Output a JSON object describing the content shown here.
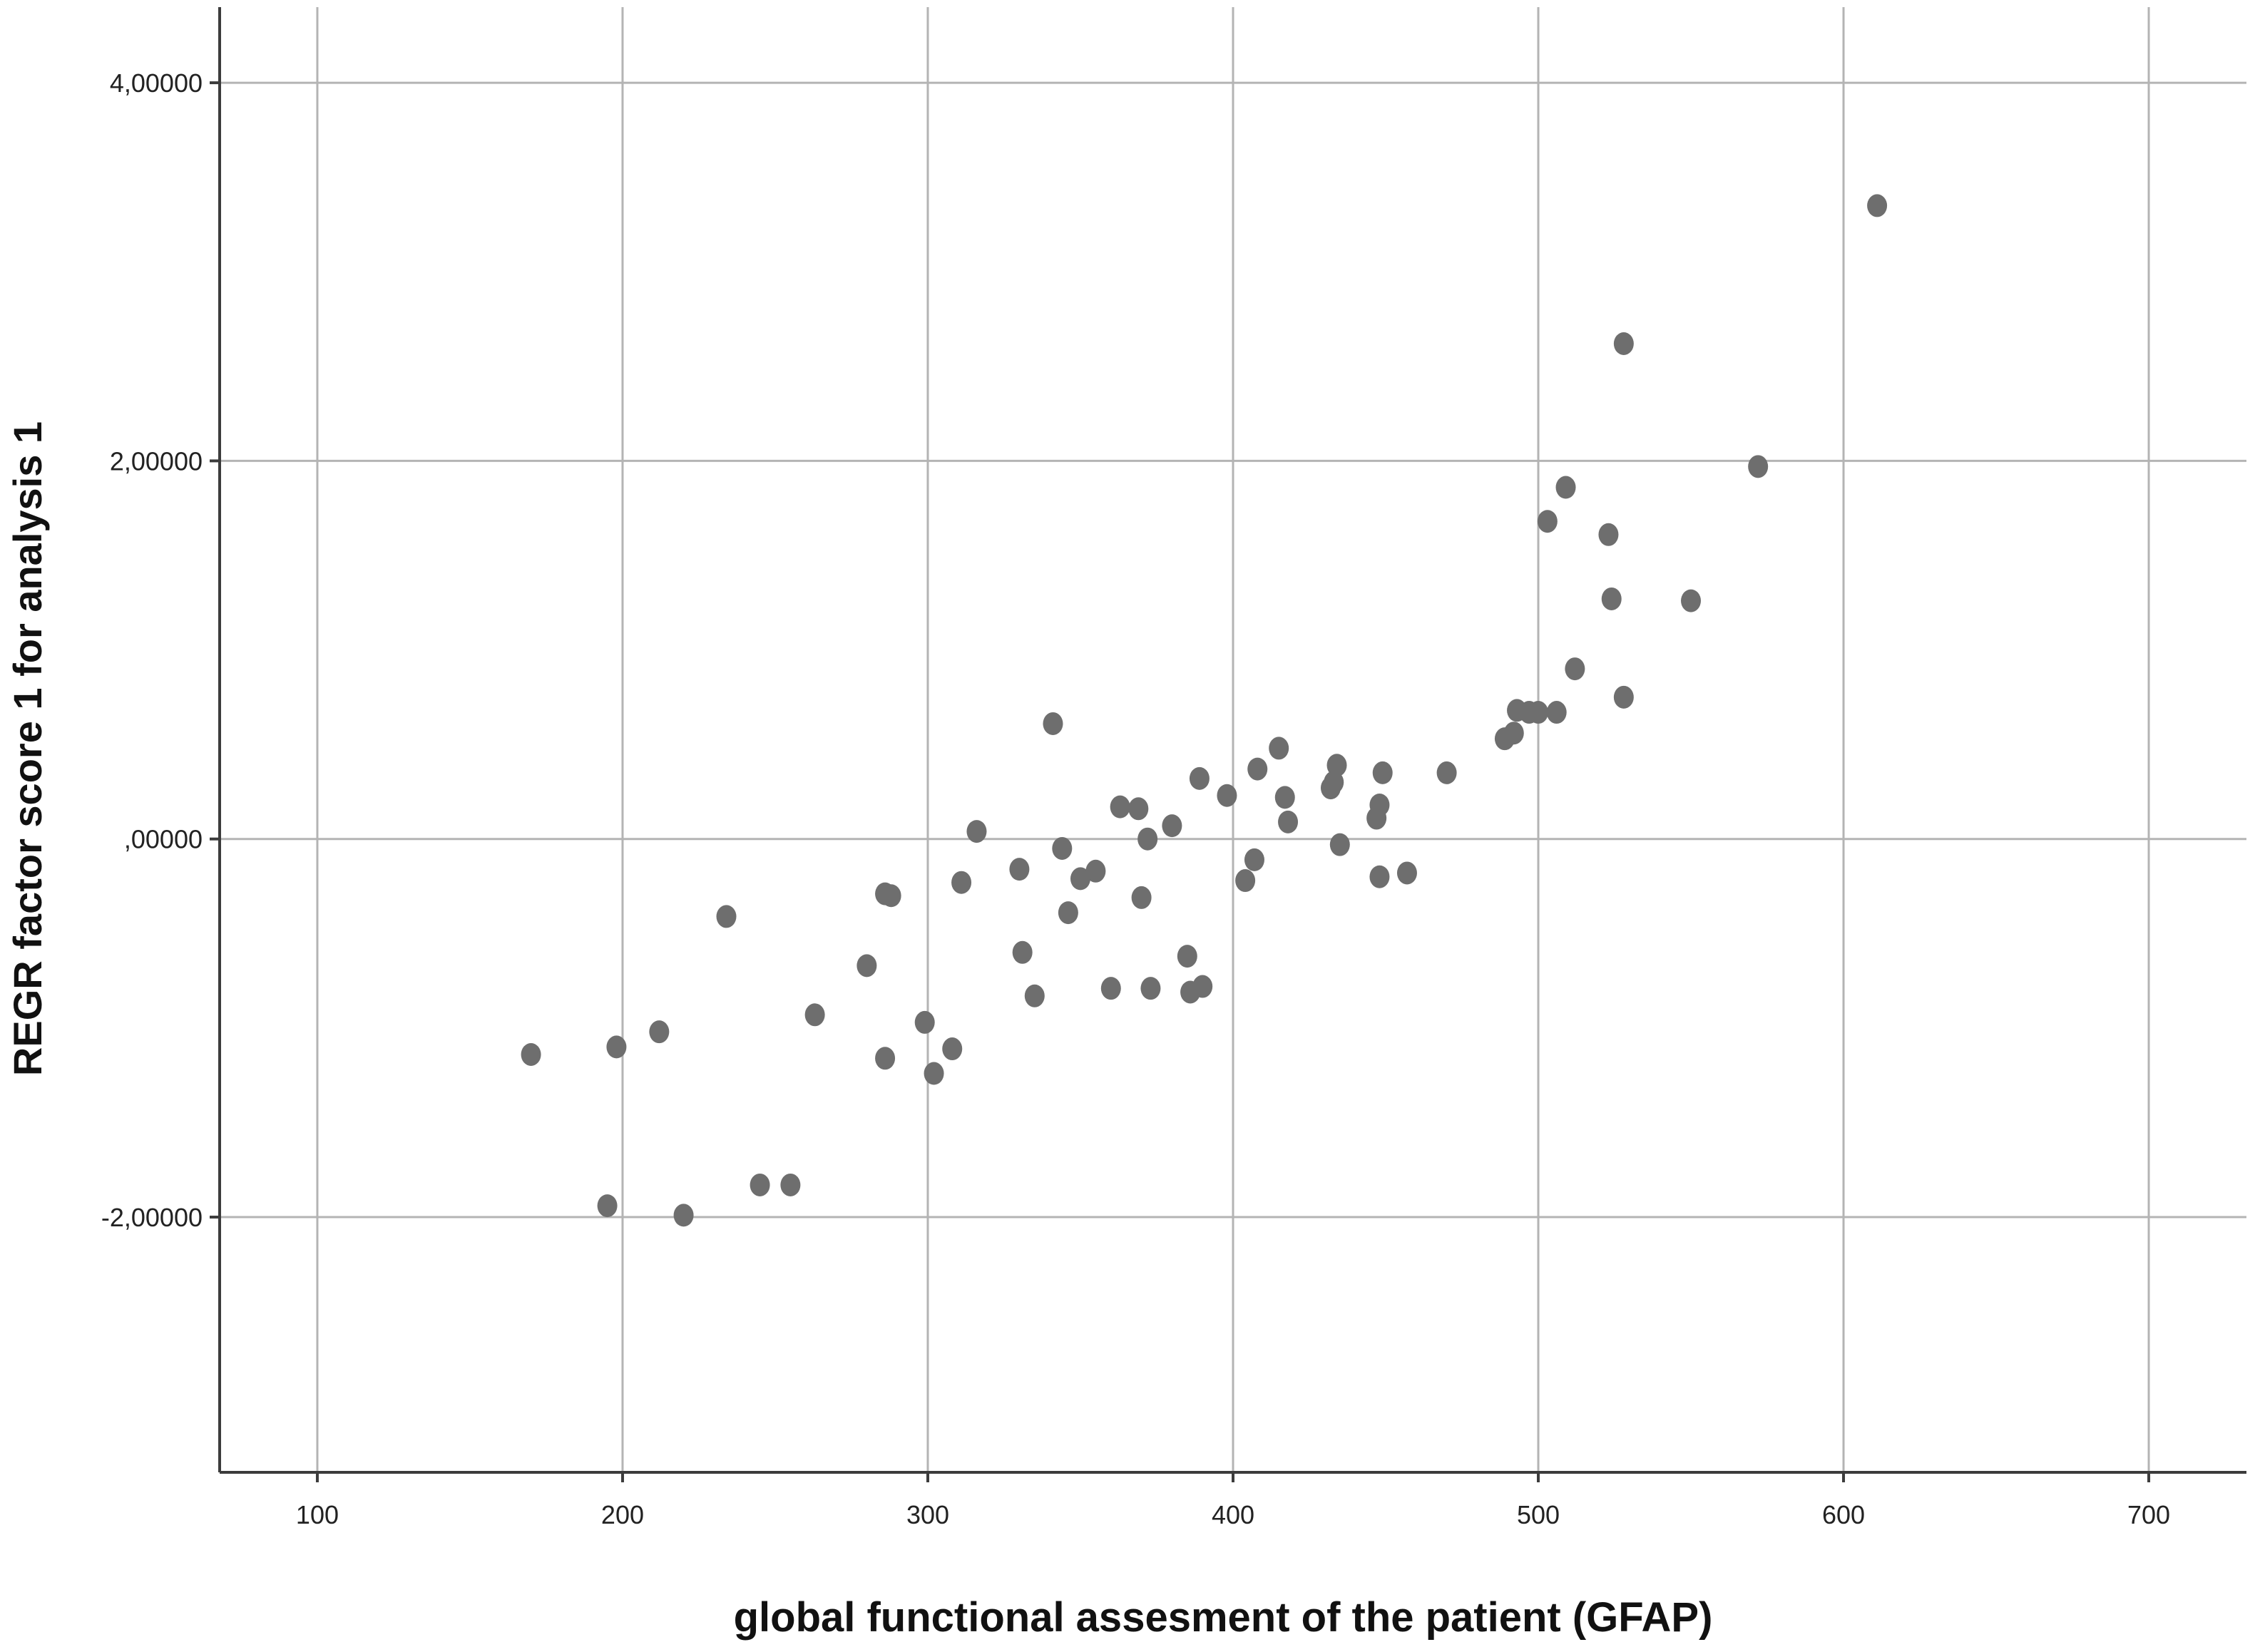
{
  "chart_data": {
    "type": "scatter",
    "title": "",
    "xlabel": "global functional assesment of the patient (GFAP)",
    "ylabel": "REGR factor score   1 for analysis 1",
    "xlim": [
      68,
      732
    ],
    "ylim": [
      -3.35,
      4.4
    ],
    "x_ticks": [
      100,
      200,
      300,
      400,
      500,
      600,
      700
    ],
    "x_tick_labels": [
      "100",
      "200",
      "300",
      "400",
      "500",
      "600",
      "700"
    ],
    "y_ticks": [
      -2,
      0,
      2,
      4
    ],
    "y_tick_labels": [
      "-2,00000",
      ",00000",
      "2,00000",
      "4,00000"
    ],
    "grid": true,
    "point_color": "#6e6e6e",
    "series": [
      {
        "points": [
          [
            170,
            -1.14
          ],
          [
            195,
            -1.94
          ],
          [
            198,
            -1.1
          ],
          [
            212,
            -1.02
          ],
          [
            220,
            -1.99
          ],
          [
            234,
            -0.41
          ],
          [
            245,
            -1.83
          ],
          [
            255,
            -1.83
          ],
          [
            263,
            -0.93
          ],
          [
            280,
            -0.67
          ],
          [
            286,
            -0.29
          ],
          [
            288,
            -0.3
          ],
          [
            286,
            -1.16
          ],
          [
            299,
            -0.97
          ],
          [
            302,
            -1.24
          ],
          [
            308,
            -1.11
          ],
          [
            311,
            -0.23
          ],
          [
            316,
            0.04
          ],
          [
            330,
            -0.16
          ],
          [
            331,
            -0.6
          ],
          [
            335,
            -0.83
          ],
          [
            341,
            0.61
          ],
          [
            344,
            -0.05
          ],
          [
            346,
            -0.39
          ],
          [
            350,
            -0.21
          ],
          [
            355,
            -0.17
          ],
          [
            360,
            -0.79
          ],
          [
            363,
            0.17
          ],
          [
            369,
            0.16
          ],
          [
            370,
            -0.31
          ],
          [
            372,
            0.0
          ],
          [
            373,
            -0.79
          ],
          [
            380,
            0.07
          ],
          [
            385,
            -0.62
          ],
          [
            386,
            -0.81
          ],
          [
            389,
            0.32
          ],
          [
            390,
            -0.78
          ],
          [
            398,
            0.23
          ],
          [
            404,
            -0.22
          ],
          [
            407,
            -0.11
          ],
          [
            408,
            0.37
          ],
          [
            415,
            0.48
          ],
          [
            417,
            0.22
          ],
          [
            418,
            0.09
          ],
          [
            432,
            0.27
          ],
          [
            433,
            0.3
          ],
          [
            434,
            0.39
          ],
          [
            435,
            -0.03
          ],
          [
            447,
            0.11
          ],
          [
            448,
            0.18
          ],
          [
            448,
            -0.2
          ],
          [
            449,
            0.35
          ],
          [
            457,
            -0.18
          ],
          [
            470,
            0.35
          ],
          [
            489,
            0.53
          ],
          [
            492,
            0.56
          ],
          [
            493,
            0.68
          ],
          [
            497,
            0.67
          ],
          [
            500,
            0.67
          ],
          [
            503,
            1.68
          ],
          [
            506,
            0.67
          ],
          [
            509,
            1.86
          ],
          [
            512,
            0.9
          ],
          [
            523,
            1.61
          ],
          [
            524,
            1.27
          ],
          [
            528,
            2.62
          ],
          [
            528,
            0.75
          ],
          [
            550,
            1.26
          ],
          [
            572,
            1.97
          ],
          [
            611,
            3.35
          ]
        ]
      }
    ]
  }
}
